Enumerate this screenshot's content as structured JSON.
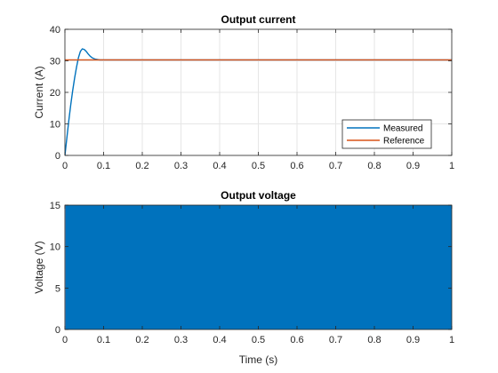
{
  "chart_data": [
    {
      "type": "line",
      "title": "Output current",
      "xlabel": "",
      "ylabel": "Current (A)",
      "xlim": [
        0,
        1
      ],
      "ylim": [
        0,
        40
      ],
      "xticks": [
        0,
        0.1,
        0.2,
        0.3,
        0.4,
        0.5,
        0.6,
        0.7,
        0.8,
        0.9,
        1
      ],
      "yticks": [
        0,
        10,
        20,
        30,
        40
      ],
      "xtick_labels": [
        "0",
        "0.1",
        "0.2",
        "0.3",
        "0.4",
        "0.5",
        "0.6",
        "0.7",
        "0.8",
        "0.9",
        "1"
      ],
      "ytick_labels": [
        "0",
        "10",
        "20",
        "30",
        "40"
      ],
      "grid": true,
      "legend_position": "bottom-right",
      "series": [
        {
          "name": "Measured",
          "color": "#0072BD",
          "x": [
            0,
            0.005,
            0.01,
            0.015,
            0.02,
            0.025,
            0.03,
            0.035,
            0.04,
            0.045,
            0.05,
            0.055,
            0.06,
            0.065,
            0.07,
            0.075,
            0.08,
            0.085,
            0.09,
            0.1,
            0.12,
            0.15,
            0.2,
            0.3,
            0.4,
            0.5,
            0.6,
            0.7,
            0.8,
            0.9,
            1.0
          ],
          "y": [
            0,
            5.5,
            11,
            16,
            20.5,
            24.5,
            28,
            31,
            33,
            33.8,
            33.6,
            33,
            32.2,
            31.5,
            31,
            30.7,
            30.5,
            30.4,
            30.3,
            30.3,
            30.3,
            30.3,
            30.3,
            30.3,
            30.3,
            30.3,
            30.3,
            30.3,
            30.3,
            30.3,
            30.3
          ]
        },
        {
          "name": "Reference",
          "color": "#D95319",
          "x": [
            0,
            1
          ],
          "y": [
            30.3,
            30.3
          ]
        }
      ]
    },
    {
      "type": "line",
      "title": "Output voltage",
      "xlabel": "Time (s)",
      "ylabel": "Voltage (V)",
      "xlim": [
        0,
        1
      ],
      "ylim": [
        0,
        15
      ],
      "xticks": [
        0,
        0.1,
        0.2,
        0.3,
        0.4,
        0.5,
        0.6,
        0.7,
        0.8,
        0.9,
        1
      ],
      "yticks": [
        0,
        5,
        10,
        15
      ],
      "xtick_labels": [
        "0",
        "0.1",
        "0.2",
        "0.3",
        "0.4",
        "0.5",
        "0.6",
        "0.7",
        "0.8",
        "0.9",
        "1"
      ],
      "ytick_labels": [
        "0",
        "5",
        "10",
        "15"
      ],
      "grid": true,
      "series": [
        {
          "color": "#0072BD",
          "style": "dense switching waveform",
          "low": 0,
          "high": 15,
          "x_start": 0,
          "x_end": 1
        }
      ]
    }
  ]
}
